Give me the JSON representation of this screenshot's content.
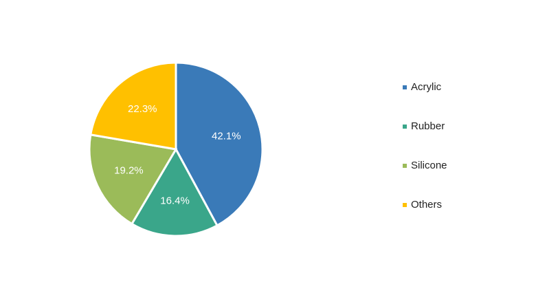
{
  "chart_data": {
    "type": "pie",
    "categories": [
      "Acrylic",
      "Rubber",
      "Silicone",
      "Others"
    ],
    "values": [
      42.1,
      16.4,
      19.2,
      22.3
    ],
    "value_labels": [
      "42.1%",
      "16.4%",
      "19.2%",
      "22.3%"
    ],
    "colors": [
      "#3a7ab8",
      "#3aa68a",
      "#9bbb59",
      "#ffc000"
    ],
    "legend": "right"
  }
}
